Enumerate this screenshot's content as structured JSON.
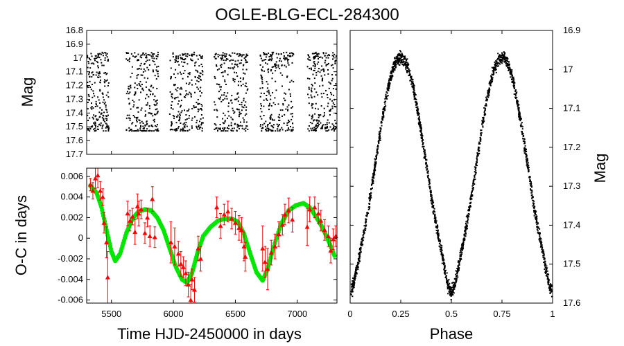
{
  "title": "OGLE-BLG-ECL-284300",
  "chart_data": [
    {
      "type": "scatter",
      "panel": "light-curve",
      "xlabel": "",
      "ylabel": "Mag",
      "xlim": [
        5300,
        7320
      ],
      "ylim": [
        17.7,
        16.8
      ],
      "y_inverted": true,
      "yticks": [
        "16.8",
        "16.9",
        "17",
        "17.1",
        "17.2",
        "17.3",
        "17.4",
        "17.5",
        "17.6",
        "17.7"
      ],
      "ytick_values": [
        16.8,
        16.9,
        17.0,
        17.1,
        17.2,
        17.3,
        17.4,
        17.5,
        17.6,
        17.7
      ],
      "season_windows": [
        [
          5260,
          5480
        ],
        [
          5620,
          5880
        ],
        [
          5970,
          6240
        ],
        [
          6330,
          6600
        ],
        [
          6700,
          6970
        ],
        [
          7080,
          7330
        ]
      ],
      "mag_range": [
        16.96,
        17.53
      ],
      "color": "#000000"
    },
    {
      "type": "scatter",
      "panel": "o-c",
      "xlabel": "Time HJD-2450000 in days",
      "ylabel": "O-C in days",
      "xlim": [
        5300,
        7320
      ],
      "ylim": [
        -0.0063,
        0.0068
      ],
      "xticks": [
        "5500",
        "6000",
        "6500",
        "7000"
      ],
      "xtick_values": [
        5500,
        6000,
        6500,
        7000
      ],
      "yticks": [
        "0.006",
        "0.004",
        "0.002",
        "0",
        "-0.002",
        "-0.004",
        "-0.006"
      ],
      "ytick_values": [
        0.006,
        0.004,
        0.002,
        0,
        -0.002,
        -0.004,
        -0.006
      ],
      "series": [
        {
          "kind": "observed",
          "color": "#ff0000",
          "points": [
            [
              5330,
              0.0052,
              0.0006
            ],
            [
              5350,
              0.0046,
              0.0008
            ],
            [
              5370,
              0.0058,
              0.001
            ],
            [
              5390,
              0.0061,
              0.0012
            ],
            [
              5410,
              0.0046,
              0.0009
            ],
            [
              5430,
              0.004,
              0.0008
            ],
            [
              5440,
              0.0015,
              0.001
            ],
            [
              5460,
              -0.0004,
              0.0015
            ],
            [
              5470,
              -0.0038,
              0.0025
            ],
            [
              5630,
              0.0024,
              0.0012
            ],
            [
              5650,
              0.0017,
              0.001
            ],
            [
              5670,
              0.0021,
              0.0008
            ],
            [
              5690,
              0.0006,
              0.0012
            ],
            [
              5710,
              0.0031,
              0.0012
            ],
            [
              5720,
              0.0024,
              0.0012
            ],
            [
              5740,
              0.0028,
              0.0009
            ],
            [
              5770,
              0.0005,
              0.001
            ],
            [
              5790,
              0.002,
              0.0009
            ],
            [
              5810,
              0.0002,
              0.001
            ],
            [
              5830,
              0.0038,
              0.0012
            ],
            [
              5850,
              0.0001,
              0.001
            ],
            [
              5980,
              -0.0004,
              0.002
            ],
            [
              6010,
              -0.0008,
              0.0018
            ],
            [
              6040,
              -0.0015,
              0.0012
            ],
            [
              6060,
              -0.0025,
              0.0012
            ],
            [
              6080,
              -0.0028,
              0.001
            ],
            [
              6100,
              -0.0034,
              0.0012
            ],
            [
              6120,
              -0.0045,
              0.0012
            ],
            [
              6140,
              -0.006,
              0.0015
            ],
            [
              6150,
              -0.004,
              0.001
            ],
            [
              6170,
              -0.005,
              0.0012
            ],
            [
              6200,
              -0.001,
              0.0012
            ],
            [
              6220,
              -0.002,
              0.0012
            ],
            [
              6350,
              0.003,
              0.001
            ],
            [
              6380,
              0.0012,
              0.0012
            ],
            [
              6410,
              0.0023,
              0.001
            ],
            [
              6440,
              0.0026,
              0.001
            ],
            [
              6470,
              0.0019,
              0.001
            ],
            [
              6500,
              0.0015,
              0.0011
            ],
            [
              6530,
              0.001,
              0.0012
            ],
            [
              6550,
              0.0008,
              0.0012
            ],
            [
              6570,
              -0.0008,
              0.0014
            ],
            [
              6580,
              -0.0018,
              0.0014
            ],
            [
              6720,
              -0.001,
              0.0022
            ],
            [
              6740,
              -0.0023,
              0.0015
            ],
            [
              6760,
              -0.003,
              0.002
            ],
            [
              6790,
              -0.0014,
              0.0012
            ],
            [
              6820,
              -0.0008,
              0.0012
            ],
            [
              6850,
              0.0004,
              0.0012
            ],
            [
              6880,
              0.0013,
              0.001
            ],
            [
              6900,
              0.0023,
              0.001
            ],
            [
              6930,
              0.0027,
              0.0012
            ],
            [
              6960,
              0.0018,
              0.0012
            ],
            [
              7080,
              0.0011,
              0.0018
            ],
            [
              7100,
              0.0028,
              0.0012
            ],
            [
              7140,
              0.003,
              0.001
            ],
            [
              7170,
              0.0024,
              0.001
            ],
            [
              7190,
              0.0017,
              0.001
            ],
            [
              7220,
              0.0008,
              0.001
            ],
            [
              7250,
              0.0002,
              0.001
            ],
            [
              7270,
              -0.0012,
              0.0012
            ],
            [
              7290,
              -0.0001,
              0.001
            ],
            [
              7310,
              0.0002,
              0.001
            ]
          ]
        },
        {
          "kind": "model",
          "color": "#00e600",
          "points": [
            [
              5330,
              0.0051
            ],
            [
              5380,
              0.0044
            ],
            [
              5420,
              0.003
            ],
            [
              5460,
              0.0008
            ],
            [
              5500,
              -0.0013
            ],
            [
              5530,
              -0.0022
            ],
            [
              5570,
              -0.0015
            ],
            [
              5620,
              0.0005
            ],
            [
              5670,
              0.0019
            ],
            [
              5720,
              0.0026
            ],
            [
              5770,
              0.0028
            ],
            [
              5820,
              0.0027
            ],
            [
              5870,
              0.002
            ],
            [
              5920,
              0.0008
            ],
            [
              5970,
              -0.001
            ],
            [
              6020,
              -0.0028
            ],
            [
              6070,
              -0.004
            ],
            [
              6110,
              -0.0043
            ],
            [
              6150,
              -0.0034
            ],
            [
              6190,
              -0.0016
            ],
            [
              6240,
              0.0002
            ],
            [
              6300,
              0.0011
            ],
            [
              6360,
              0.0017
            ],
            [
              6420,
              0.0019
            ],
            [
              6470,
              0.0019
            ],
            [
              6520,
              0.0016
            ],
            [
              6570,
              0.0004
            ],
            [
              6620,
              -0.0015
            ],
            [
              6670,
              -0.0033
            ],
            [
              6720,
              -0.0041
            ],
            [
              6760,
              -0.003
            ],
            [
              6810,
              -0.0008
            ],
            [
              6870,
              0.0014
            ],
            [
              6930,
              0.0027
            ],
            [
              6990,
              0.0032
            ],
            [
              7050,
              0.0034
            ],
            [
              7100,
              0.003
            ],
            [
              7150,
              0.0021
            ],
            [
              7200,
              0.0011
            ],
            [
              7250,
              -0.0002
            ],
            [
              7300,
              -0.0017
            ]
          ]
        }
      ]
    },
    {
      "type": "scatter",
      "panel": "phased-light-curve",
      "xlabel": "Phase",
      "ylabel": "Mag",
      "xlim": [
        0,
        1
      ],
      "ylim": [
        17.6,
        16.9
      ],
      "y_inverted": true,
      "xticks": [
        "0",
        "0.25",
        "0.5",
        "0.75",
        "1"
      ],
      "xtick_values": [
        0,
        0.25,
        0.5,
        0.75,
        1
      ],
      "yticks": [
        "16.9",
        "17",
        "17.1",
        "17.2",
        "17.3",
        "17.4",
        "17.5",
        "17.6"
      ],
      "ytick_values": [
        16.9,
        17.0,
        17.1,
        17.2,
        17.3,
        17.4,
        17.5,
        17.6
      ],
      "maximum_mag": 16.97,
      "primary_minimum": {
        "phase": 0.5,
        "mag": 17.5
      },
      "secondary_minimum": {
        "phase": 0.0,
        "mag": 17.53
      },
      "color": "#000000"
    }
  ]
}
